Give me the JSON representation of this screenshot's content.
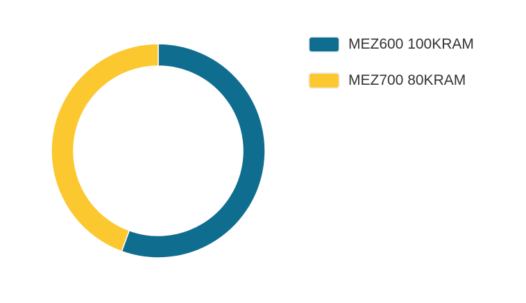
{
  "colors": {
    "series_a": "#0f6e8f",
    "series_b": "#fbc830",
    "border": "#ffffff"
  },
  "chart_data": {
    "type": "pie",
    "variant": "doughnut",
    "categories": [
      "MEZ600 100KRAM",
      "MEZ700 80KRAM"
    ],
    "values": [
      100,
      80
    ],
    "legend": "right",
    "title": ""
  }
}
